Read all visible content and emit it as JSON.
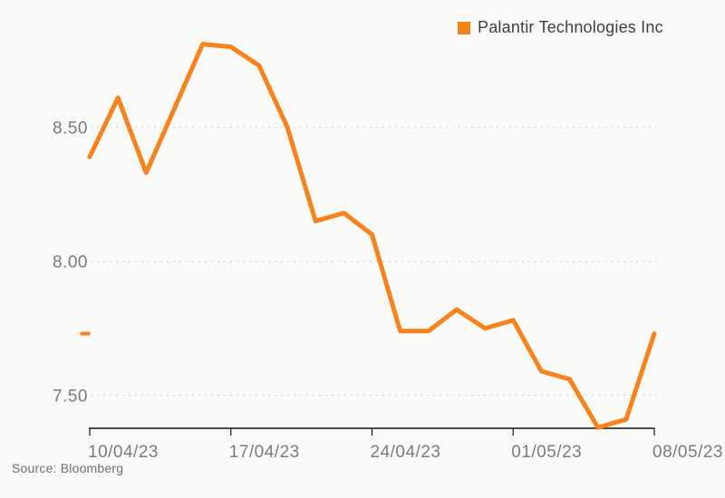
{
  "legend": {
    "label": "Palantir Technologies Inc"
  },
  "source": "Source: Bloomberg",
  "colors": {
    "accent": "#f8821c",
    "background": "#fafaf8",
    "gridline": "#d8d8d8",
    "axis": "#141414",
    "tick_label": "#7b7b7b",
    "legend_text": "#3f3f3f",
    "source_text": "#6e6e6e"
  },
  "chart_data": {
    "type": "line",
    "title": "",
    "legend_entries": [
      "Palantir Technologies Inc"
    ],
    "x": [
      "10/04/23",
      "11/04/23",
      "12/04/23",
      "13/04/23",
      "14/04/23",
      "17/04/23",
      "18/04/23",
      "19/04/23",
      "20/04/23",
      "21/04/23",
      "24/04/23",
      "25/04/23",
      "26/04/23",
      "27/04/23",
      "28/04/23",
      "01/05/23",
      "02/05/23",
      "03/05/23",
      "04/05/23",
      "05/05/23",
      "08/05/23"
    ],
    "series": [
      {
        "name": "Palantir Technologies Inc",
        "values": [
          8.39,
          8.61,
          8.33,
          8.57,
          8.81,
          8.8,
          8.73,
          8.5,
          8.15,
          8.18,
          8.1,
          7.74,
          7.74,
          7.82,
          7.75,
          7.78,
          7.59,
          7.56,
          7.38,
          7.41,
          7.73
        ]
      }
    ],
    "x_tick_labels": [
      "10/04/23",
      "17/04/23",
      "24/04/23",
      "01/05/23",
      "08/05/23"
    ],
    "x_tick_indices": [
      0,
      5,
      10,
      15,
      20
    ],
    "y_ticks": [
      7.5,
      8.0,
      8.5
    ],
    "y_tick_labels": [
      "7.50",
      "8.00",
      "8.50"
    ],
    "ylim": [
      7.377,
      8.977
    ],
    "last_price_marker": 7.73,
    "grid": "horizontal-dotted",
    "legend_position": "top-right",
    "xlabel": "",
    "ylabel": ""
  }
}
